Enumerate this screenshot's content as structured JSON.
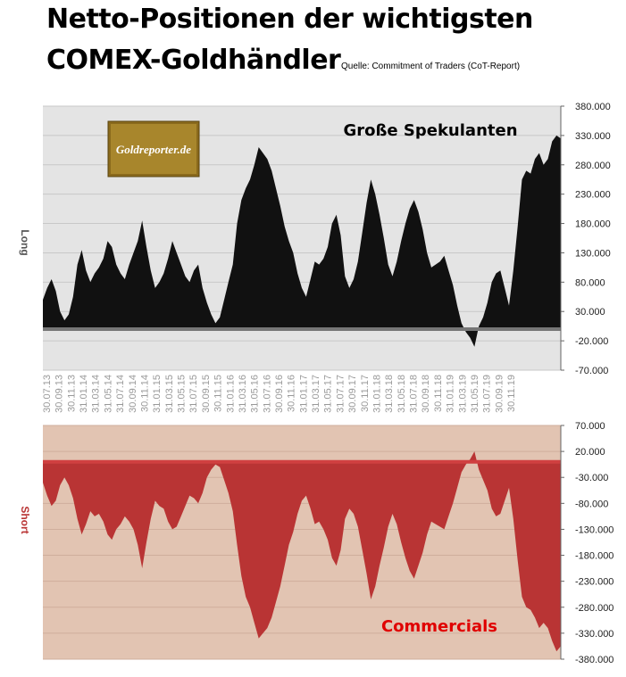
{
  "header": {
    "title_line1": "Netto-Positionen der wichtigsten",
    "title_line2": "COMEX-Goldhändler",
    "source": "Quelle: Commitment of Traders (CoT-Report)"
  },
  "logo": {
    "text": "Goldreporter.de"
  },
  "colors": {
    "long_fill": "#111111",
    "short_fill": "#b93434",
    "top_bg": "#e4e4e4",
    "bottom_bg": "#e2c4b2",
    "commercials_label": "#e00000"
  },
  "chart_data": [
    {
      "type": "area",
      "panel_label": "Große Spekulanten",
      "ylabel": "Long",
      "ylim": [
        -70000,
        380000
      ],
      "yticks": [
        "380.000",
        "330.000",
        "280.000",
        "230.000",
        "180.000",
        "130.000",
        "80.000",
        "30.000",
        "-20.000",
        "-70.000"
      ],
      "x_tick_labels": [
        "30.07.13",
        "30.09.13",
        "30.11.13",
        "31.01.14",
        "31.03.14",
        "31.05.14",
        "31.07.14",
        "30.09.14",
        "30.11.14",
        "31.01.15",
        "31.03.15",
        "31.05.15",
        "31.07.15",
        "30.09.15",
        "30.11.15",
        "31.01.16",
        "31.03.16",
        "31.05.16",
        "31.07.16",
        "30.09.16",
        "30.11.16",
        "31.01.17",
        "31.03.17",
        "31.05.17",
        "31.07.17",
        "30.09.17",
        "30.11.17",
        "31.01.18",
        "31.03.18",
        "31.05.18",
        "31.07.18",
        "30.09.18",
        "30.11.18",
        "31.01.19",
        "31.03.19",
        "31.05.19",
        "31.07.19",
        "30.09.19",
        "30.11.19"
      ],
      "values": [
        50000,
        70000,
        85000,
        65000,
        30000,
        15000,
        25000,
        55000,
        110000,
        135000,
        100000,
        80000,
        95000,
        105000,
        120000,
        150000,
        140000,
        110000,
        95000,
        85000,
        110000,
        130000,
        150000,
        185000,
        140000,
        100000,
        70000,
        80000,
        95000,
        120000,
        150000,
        130000,
        110000,
        90000,
        80000,
        100000,
        110000,
        70000,
        45000,
        25000,
        10000,
        20000,
        50000,
        80000,
        110000,
        180000,
        220000,
        240000,
        255000,
        280000,
        310000,
        300000,
        290000,
        270000,
        240000,
        210000,
        175000,
        150000,
        130000,
        95000,
        70000,
        55000,
        85000,
        115000,
        110000,
        120000,
        140000,
        180000,
        195000,
        160000,
        90000,
        70000,
        85000,
        115000,
        165000,
        215000,
        255000,
        230000,
        195000,
        155000,
        110000,
        90000,
        115000,
        150000,
        180000,
        205000,
        220000,
        200000,
        170000,
        130000,
        105000,
        110000,
        115000,
        125000,
        100000,
        75000,
        40000,
        10000,
        -5000,
        -15000,
        -30000,
        5000,
        20000,
        45000,
        80000,
        95000,
        100000,
        70000,
        40000,
        100000,
        175000,
        255000,
        270000,
        265000,
        290000,
        300000,
        280000,
        290000,
        320000,
        330000,
        325000
      ]
    },
    {
      "type": "area",
      "panel_label": "Commercials",
      "ylabel": "Short",
      "ylim": [
        -380000,
        70000
      ],
      "yticks": [
        "70.000",
        "20.000",
        "-30.000",
        "-80.000",
        "-130.000",
        "-180.000",
        "-230.000",
        "-280.000",
        "-330.000",
        "-380.000"
      ],
      "values": [
        -40000,
        -65000,
        -85000,
        -75000,
        -45000,
        -30000,
        -45000,
        -70000,
        -110000,
        -140000,
        -120000,
        -95000,
        -105000,
        -100000,
        -115000,
        -140000,
        -150000,
        -130000,
        -120000,
        -105000,
        -115000,
        -130000,
        -160000,
        -205000,
        -155000,
        -110000,
        -75000,
        -85000,
        -90000,
        -115000,
        -130000,
        -125000,
        -105000,
        -85000,
        -65000,
        -70000,
        -80000,
        -60000,
        -30000,
        -15000,
        -5000,
        -10000,
        -35000,
        -60000,
        -95000,
        -160000,
        -220000,
        -260000,
        -280000,
        -310000,
        -340000,
        -330000,
        -320000,
        -300000,
        -270000,
        -240000,
        -200000,
        -160000,
        -135000,
        -100000,
        -75000,
        -65000,
        -90000,
        -120000,
        -115000,
        -130000,
        -150000,
        -185000,
        -200000,
        -170000,
        -110000,
        -90000,
        -100000,
        -125000,
        -170000,
        -215000,
        -265000,
        -240000,
        -200000,
        -165000,
        -125000,
        -100000,
        -120000,
        -155000,
        -185000,
        -210000,
        -225000,
        -200000,
        -175000,
        -140000,
        -115000,
        -120000,
        -125000,
        -130000,
        -105000,
        -80000,
        -50000,
        -20000,
        -5000,
        5000,
        20000,
        -15000,
        -35000,
        -55000,
        -90000,
        -105000,
        -100000,
        -75000,
        -50000,
        -110000,
        -190000,
        -260000,
        -280000,
        -285000,
        -300000,
        -320000,
        -310000,
        -320000,
        -345000,
        -365000,
        -355000
      ]
    }
  ]
}
